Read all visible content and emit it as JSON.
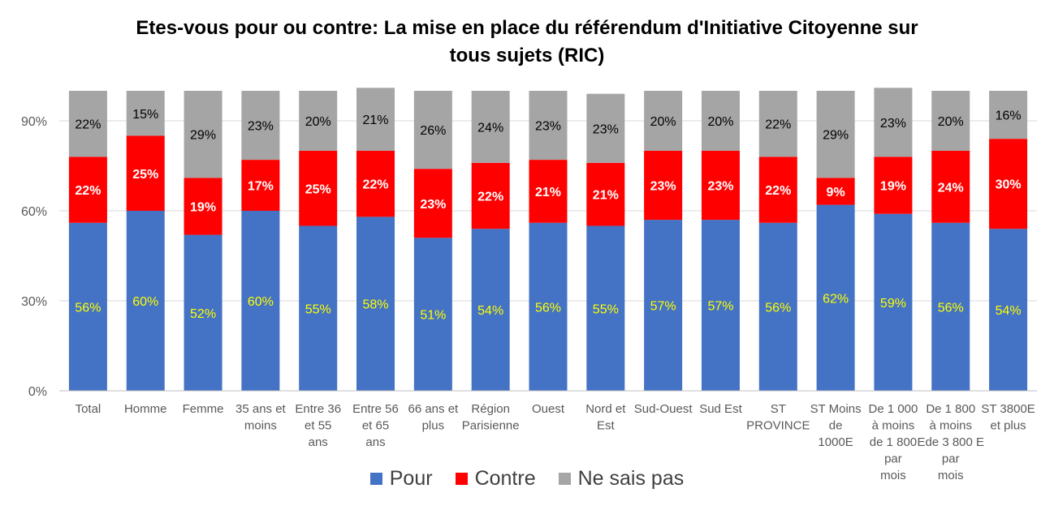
{
  "title_lines": [
    "Etes-vous pour ou contre: La mise en place du référendum d'Initiative Citoyenne sur",
    "tous sujets (RIC)"
  ],
  "chart_data": {
    "type": "bar",
    "stacked": true,
    "title": "Etes-vous pour ou contre: La mise en place du référendum d'Initiative Citoyenne sur tous sujets (RIC)",
    "categories": [
      [
        "Total"
      ],
      [
        "Homme"
      ],
      [
        "Femme"
      ],
      [
        "35 ans et",
        "moins"
      ],
      [
        "Entre 36",
        "et 55",
        "ans"
      ],
      [
        "Entre 56",
        "et 65",
        "ans"
      ],
      [
        "66 ans et",
        "plus"
      ],
      [
        "Région",
        "Parisienne"
      ],
      [
        "Ouest"
      ],
      [
        "Nord et",
        "Est"
      ],
      [
        "Sud-Ouest"
      ],
      [
        "Sud Est"
      ],
      [
        "ST",
        "PROVINCE"
      ],
      [
        "ST Moins",
        "de",
        "1000E"
      ],
      [
        "De 1 000",
        "à moins",
        "de 1 800",
        "par",
        "mois"
      ],
      [
        "De 1 800",
        "à moins",
        "Ede 3 800 E",
        "par",
        "mois"
      ],
      [
        "ST 3800E",
        "et plus"
      ]
    ],
    "series": [
      {
        "name": "Pour",
        "color": "#4472C4",
        "label_color": "#FFFF00",
        "values": [
          56,
          60,
          52,
          60,
          55,
          58,
          51,
          54,
          56,
          55,
          57,
          57,
          56,
          62,
          59,
          56,
          54
        ]
      },
      {
        "name": "Contre",
        "color": "#FF0000",
        "label_color": "#FFFFFF",
        "values": [
          22,
          25,
          19,
          17,
          25,
          22,
          23,
          22,
          21,
          21,
          23,
          23,
          22,
          9,
          19,
          24,
          30
        ]
      },
      {
        "name": "Ne sais pas",
        "color": "#A5A5A5",
        "label_color": "#000000",
        "values": [
          22,
          15,
          29,
          23,
          20,
          21,
          26,
          24,
          23,
          23,
          20,
          20,
          22,
          29,
          23,
          20,
          16
        ]
      }
    ],
    "yticks": [
      "0%",
      "30%",
      "60%",
      "90%"
    ],
    "ytick_values": [
      0,
      30,
      60,
      90
    ],
    "ylim": [
      0,
      100
    ],
    "grid": true,
    "legend_position": "bottom"
  }
}
